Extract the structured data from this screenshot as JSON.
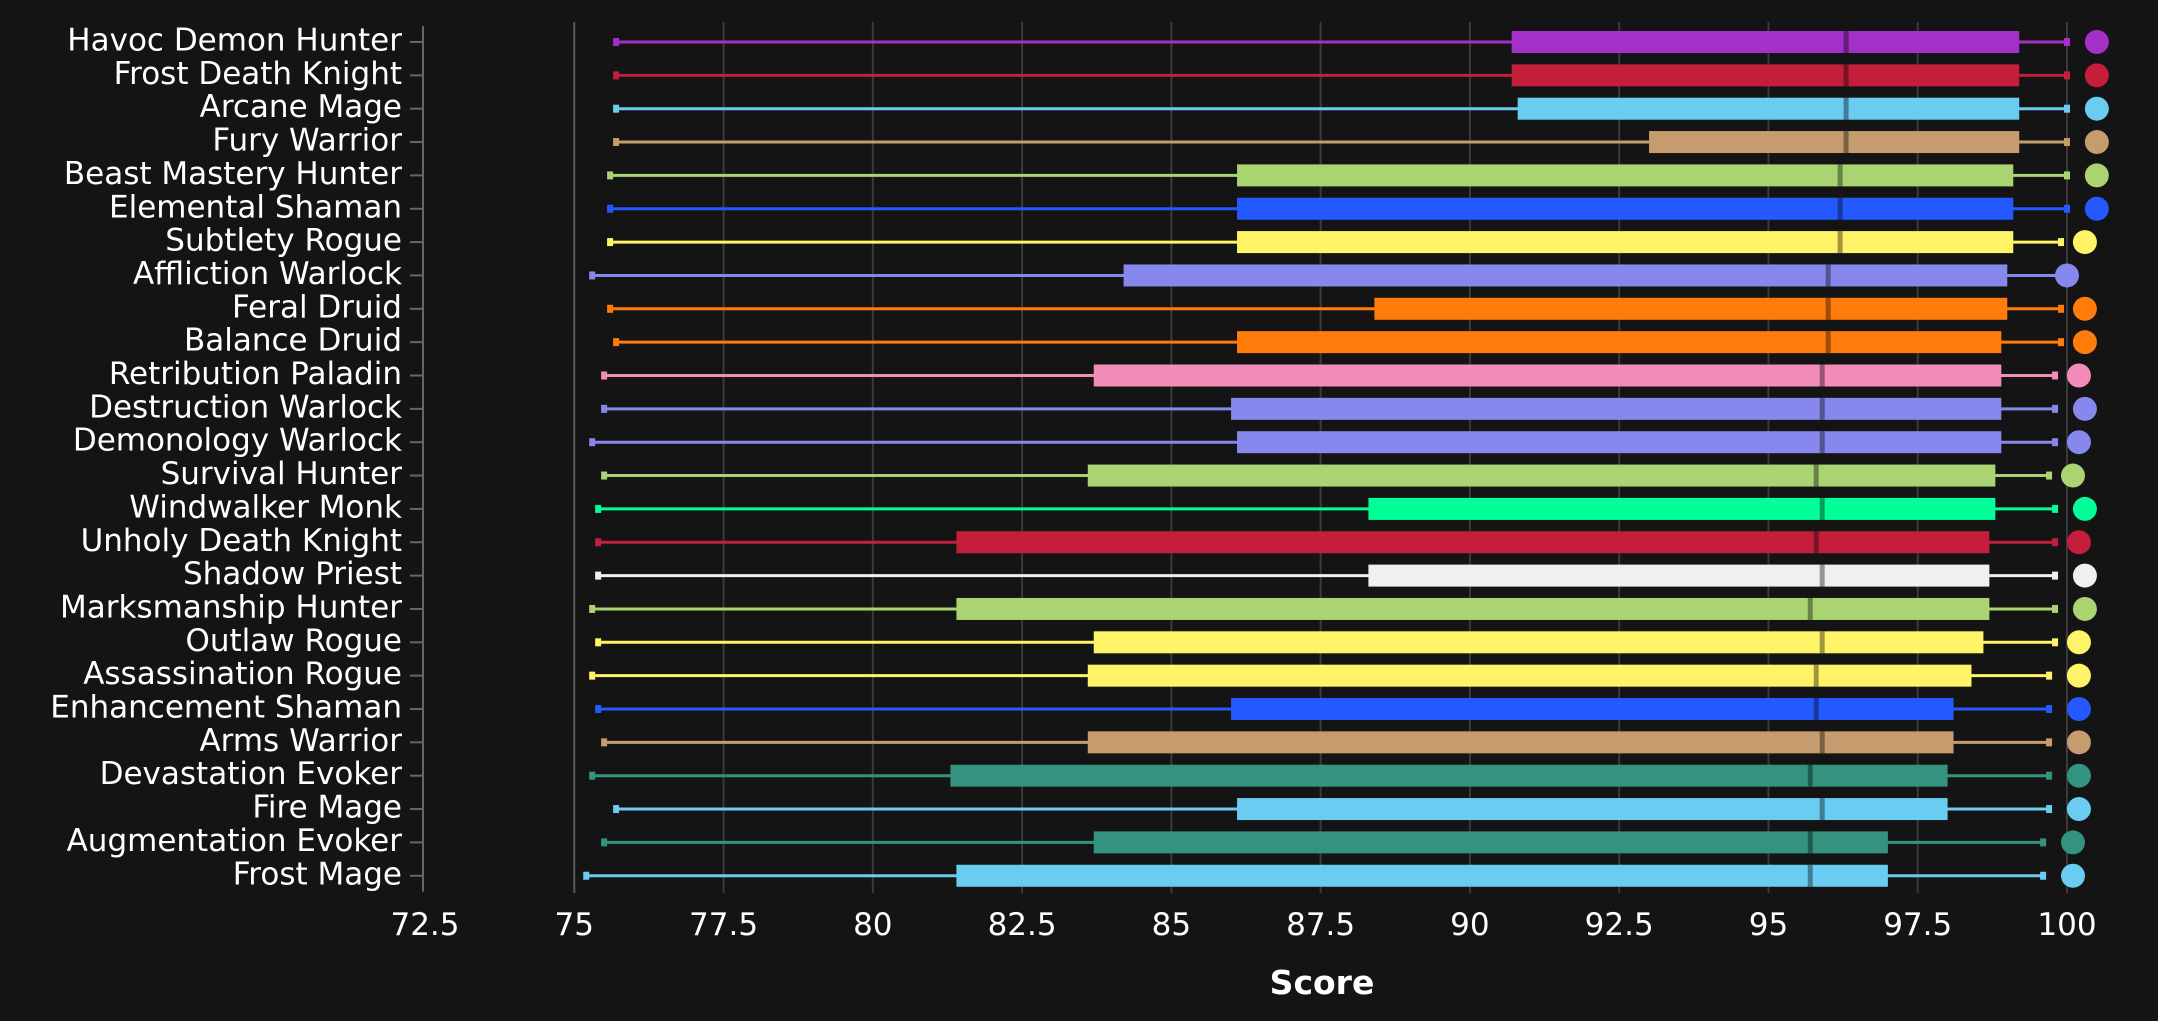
{
  "chart_data": {
    "type": "box",
    "orientation": "horizontal",
    "xlabel": "Score",
    "ylabel": "",
    "xlim": [
      72.5,
      100
    ],
    "xticks": [
      "72.5",
      "75",
      "77.5",
      "80",
      "82.5",
      "85",
      "87.5",
      "90",
      "92.5",
      "95",
      "97.5",
      "100"
    ],
    "grid": true,
    "series": [
      {
        "name": "Havoc Demon Hunter",
        "color": "#A330C9",
        "min": 75.7,
        "q1": 90.7,
        "median": 96.3,
        "q3": 99.2,
        "max": 100.0,
        "point": 100.5
      },
      {
        "name": "Frost Death Knight",
        "color": "#C41E3A",
        "min": 75.7,
        "q1": 90.7,
        "median": 96.3,
        "q3": 99.2,
        "max": 100.0,
        "point": 100.5
      },
      {
        "name": "Arcane Mage",
        "color": "#69CCF0",
        "min": 75.7,
        "q1": 90.8,
        "median": 96.3,
        "q3": 99.2,
        "max": 100.0,
        "point": 100.5
      },
      {
        "name": "Fury Warrior",
        "color": "#C69B6D",
        "min": 75.7,
        "q1": 93.0,
        "median": 96.3,
        "q3": 99.2,
        "max": 100.0,
        "point": 100.5
      },
      {
        "name": "Beast Mastery Hunter",
        "color": "#AAD372",
        "min": 75.6,
        "q1": 86.1,
        "median": 96.2,
        "q3": 99.1,
        "max": 100.0,
        "point": 100.5
      },
      {
        "name": "Elemental Shaman",
        "color": "#2459FF",
        "min": 75.6,
        "q1": 86.1,
        "median": 96.2,
        "q3": 99.1,
        "max": 100.0,
        "point": 100.5
      },
      {
        "name": "Subtlety Rogue",
        "color": "#FFF468",
        "min": 75.6,
        "q1": 86.1,
        "median": 96.2,
        "q3": 99.1,
        "max": 99.9,
        "point": 100.3
      },
      {
        "name": "Affliction Warlock",
        "color": "#8788EE",
        "min": 75.3,
        "q1": 84.2,
        "median": 96.0,
        "q3": 99.0,
        "max": 99.9,
        "point": 100.0
      },
      {
        "name": "Feral Druid",
        "color": "#FF7C0A",
        "min": 75.6,
        "q1": 88.4,
        "median": 96.0,
        "q3": 99.0,
        "max": 99.9,
        "point": 100.3
      },
      {
        "name": "Balance Druid",
        "color": "#FF7C0A",
        "min": 75.7,
        "q1": 86.1,
        "median": 96.0,
        "q3": 98.9,
        "max": 99.9,
        "point": 100.3
      },
      {
        "name": "Retribution Paladin",
        "color": "#F48CBA",
        "min": 75.5,
        "q1": 83.7,
        "median": 95.9,
        "q3": 98.9,
        "max": 99.8,
        "point": 100.2
      },
      {
        "name": "Destruction Warlock",
        "color": "#8788EE",
        "min": 75.5,
        "q1": 86.0,
        "median": 95.9,
        "q3": 98.9,
        "max": 99.8,
        "point": 100.3
      },
      {
        "name": "Demonology Warlock",
        "color": "#8788EE",
        "min": 75.3,
        "q1": 86.1,
        "median": 95.9,
        "q3": 98.9,
        "max": 99.8,
        "point": 100.2
      },
      {
        "name": "Survival Hunter",
        "color": "#AAD372",
        "min": 75.5,
        "q1": 83.6,
        "median": 95.8,
        "q3": 98.8,
        "max": 99.7,
        "point": 100.1
      },
      {
        "name": "Windwalker Monk",
        "color": "#00FF98",
        "min": 75.4,
        "q1": 88.3,
        "median": 95.9,
        "q3": 98.8,
        "max": 99.8,
        "point": 100.3
      },
      {
        "name": "Unholy Death Knight",
        "color": "#C41E3A",
        "min": 75.4,
        "q1": 81.4,
        "median": 95.8,
        "q3": 98.7,
        "max": 99.8,
        "point": 100.2
      },
      {
        "name": "Shadow Priest",
        "color": "#F0F0F0",
        "min": 75.4,
        "q1": 88.3,
        "median": 95.9,
        "q3": 98.7,
        "max": 99.8,
        "point": 100.3
      },
      {
        "name": "Marksmanship Hunter",
        "color": "#AAD372",
        "min": 75.3,
        "q1": 81.4,
        "median": 95.7,
        "q3": 98.7,
        "max": 99.8,
        "point": 100.3
      },
      {
        "name": "Outlaw Rogue",
        "color": "#FFF468",
        "min": 75.4,
        "q1": 83.7,
        "median": 95.9,
        "q3": 98.6,
        "max": 99.8,
        "point": 100.2
      },
      {
        "name": "Assassination Rogue",
        "color": "#FFF468",
        "min": 75.3,
        "q1": 83.6,
        "median": 95.8,
        "q3": 98.4,
        "max": 99.7,
        "point": 100.2
      },
      {
        "name": "Enhancement Shaman",
        "color": "#2459FF",
        "min": 75.4,
        "q1": 86.0,
        "median": 95.8,
        "q3": 98.1,
        "max": 99.7,
        "point": 100.2
      },
      {
        "name": "Arms Warrior",
        "color": "#C69B6D",
        "min": 75.5,
        "q1": 83.6,
        "median": 95.9,
        "q3": 98.1,
        "max": 99.7,
        "point": 100.2
      },
      {
        "name": "Devastation Evoker",
        "color": "#33937F",
        "min": 75.3,
        "q1": 81.3,
        "median": 95.7,
        "q3": 98.0,
        "max": 99.7,
        "point": 100.2
      },
      {
        "name": "Fire Mage",
        "color": "#69CCF0",
        "min": 75.7,
        "q1": 86.1,
        "median": 95.9,
        "q3": 98.0,
        "max": 99.7,
        "point": 100.2
      },
      {
        "name": "Augmentation Evoker",
        "color": "#33937F",
        "min": 75.5,
        "q1": 83.7,
        "median": 95.7,
        "q3": 97.0,
        "max": 99.6,
        "point": 100.1
      },
      {
        "name": "Frost Mage",
        "color": "#69CCF0",
        "min": 75.2,
        "q1": 81.4,
        "median": 95.7,
        "q3": 97.0,
        "max": 99.6,
        "point": 100.1
      }
    ]
  }
}
